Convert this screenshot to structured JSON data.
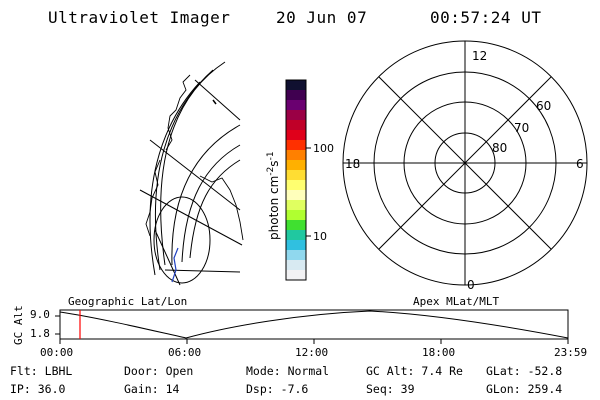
{
  "header": {
    "title": "Ultraviolet Imager",
    "date": "20 Jun 07",
    "time": "00:57:24 UT"
  },
  "colorbar": {
    "unit_label": "photon cm",
    "unit_sup1": "-2",
    "unit_mid": "s",
    "unit_sup2": "-1",
    "tick_labels": [
      "100",
      "10"
    ],
    "colors": [
      "#101030",
      "#400050",
      "#6a0070",
      "#9a0045",
      "#c00028",
      "#e0001a",
      "#ff3000",
      "#ff8000",
      "#ffb000",
      "#ffdd33",
      "#ffff70",
      "#ffffbb",
      "#e0ff60",
      "#b0ff30",
      "#40e030",
      "#20c8a0",
      "#30c0e0",
      "#90d8ee",
      "#d8eaf2",
      "#f2f2f4"
    ]
  },
  "polar_plot": {
    "mlt_labels": [
      "12",
      "18",
      "6",
      "0"
    ],
    "lat_labels": [
      "60",
      "70",
      "80"
    ]
  },
  "timeline": {
    "y_label": "GC Alt",
    "y_ticks": [
      "9.0",
      "1.8"
    ],
    "left_title": "Geographic Lat/Lon",
    "right_title": "Apex MLat/MLT",
    "x_ticks": [
      "00:00",
      "06:00",
      "12:00",
      "18:00",
      "23:59"
    ],
    "marker_color": "#ff0000"
  },
  "info": {
    "row1": [
      {
        "label": "Flt:",
        "value": "LBHL"
      },
      {
        "label": "Door:",
        "value": "Open"
      },
      {
        "label": "Mode:",
        "value": "Normal"
      },
      {
        "label": "GC Alt:",
        "value": "7.4 Re"
      },
      {
        "label": "GLat:",
        "value": "-52.8"
      }
    ],
    "row2": [
      {
        "label": "IP:",
        "value": "36.0"
      },
      {
        "label": "Gain:",
        "value": "14"
      },
      {
        "label": "Dsp:",
        "value": "-7.6"
      },
      {
        "label": "Seq:",
        "value": "39"
      },
      {
        "label": "GLon:",
        "value": "259.4"
      }
    ]
  }
}
